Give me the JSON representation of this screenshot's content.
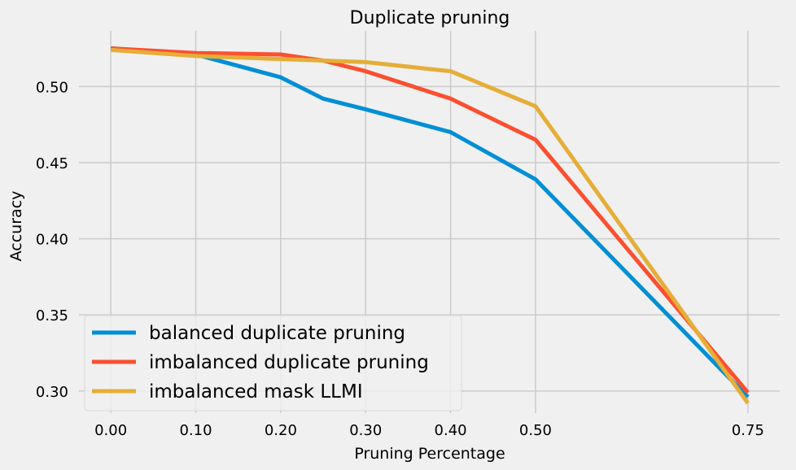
{
  "chart_data": {
    "type": "line",
    "title": "Duplicate pruning",
    "xlabel": "Pruning Percentage",
    "ylabel": "Accuracy",
    "x_ticks": [
      "0.00",
      "0.10",
      "0.20",
      "0.30",
      "0.40",
      "0.50",
      "0.75"
    ],
    "y_ticks": [
      "0.30",
      "0.35",
      "0.40",
      "0.45",
      "0.50"
    ],
    "xlim": [
      -0.0375,
      0.7875
    ],
    "ylim": [
      0.2855,
      0.5365
    ],
    "grid": true,
    "legend_position": "lower-left",
    "series": [
      {
        "name": "balanced duplicate pruning",
        "color": "#008fd5",
        "x": [
          0.0,
          0.1,
          0.2,
          0.25,
          0.3,
          0.4,
          0.5,
          0.75
        ],
        "y": [
          0.525,
          0.521,
          0.506,
          0.492,
          0.485,
          0.47,
          0.439,
          0.296
        ]
      },
      {
        "name": "imbalanced duplicate pruning",
        "color": "#fc4f30",
        "x": [
          0.0,
          0.1,
          0.2,
          0.25,
          0.3,
          0.4,
          0.5,
          0.75
        ],
        "y": [
          0.525,
          0.522,
          0.521,
          0.517,
          0.51,
          0.492,
          0.465,
          0.299
        ]
      },
      {
        "name": "imbalanced mask LLMI",
        "color": "#e5ae38",
        "x": [
          0.0,
          0.1,
          0.2,
          0.25,
          0.3,
          0.4,
          0.5,
          0.75
        ],
        "y": [
          0.524,
          0.52,
          0.518,
          0.517,
          0.516,
          0.51,
          0.487,
          0.292
        ]
      }
    ]
  }
}
